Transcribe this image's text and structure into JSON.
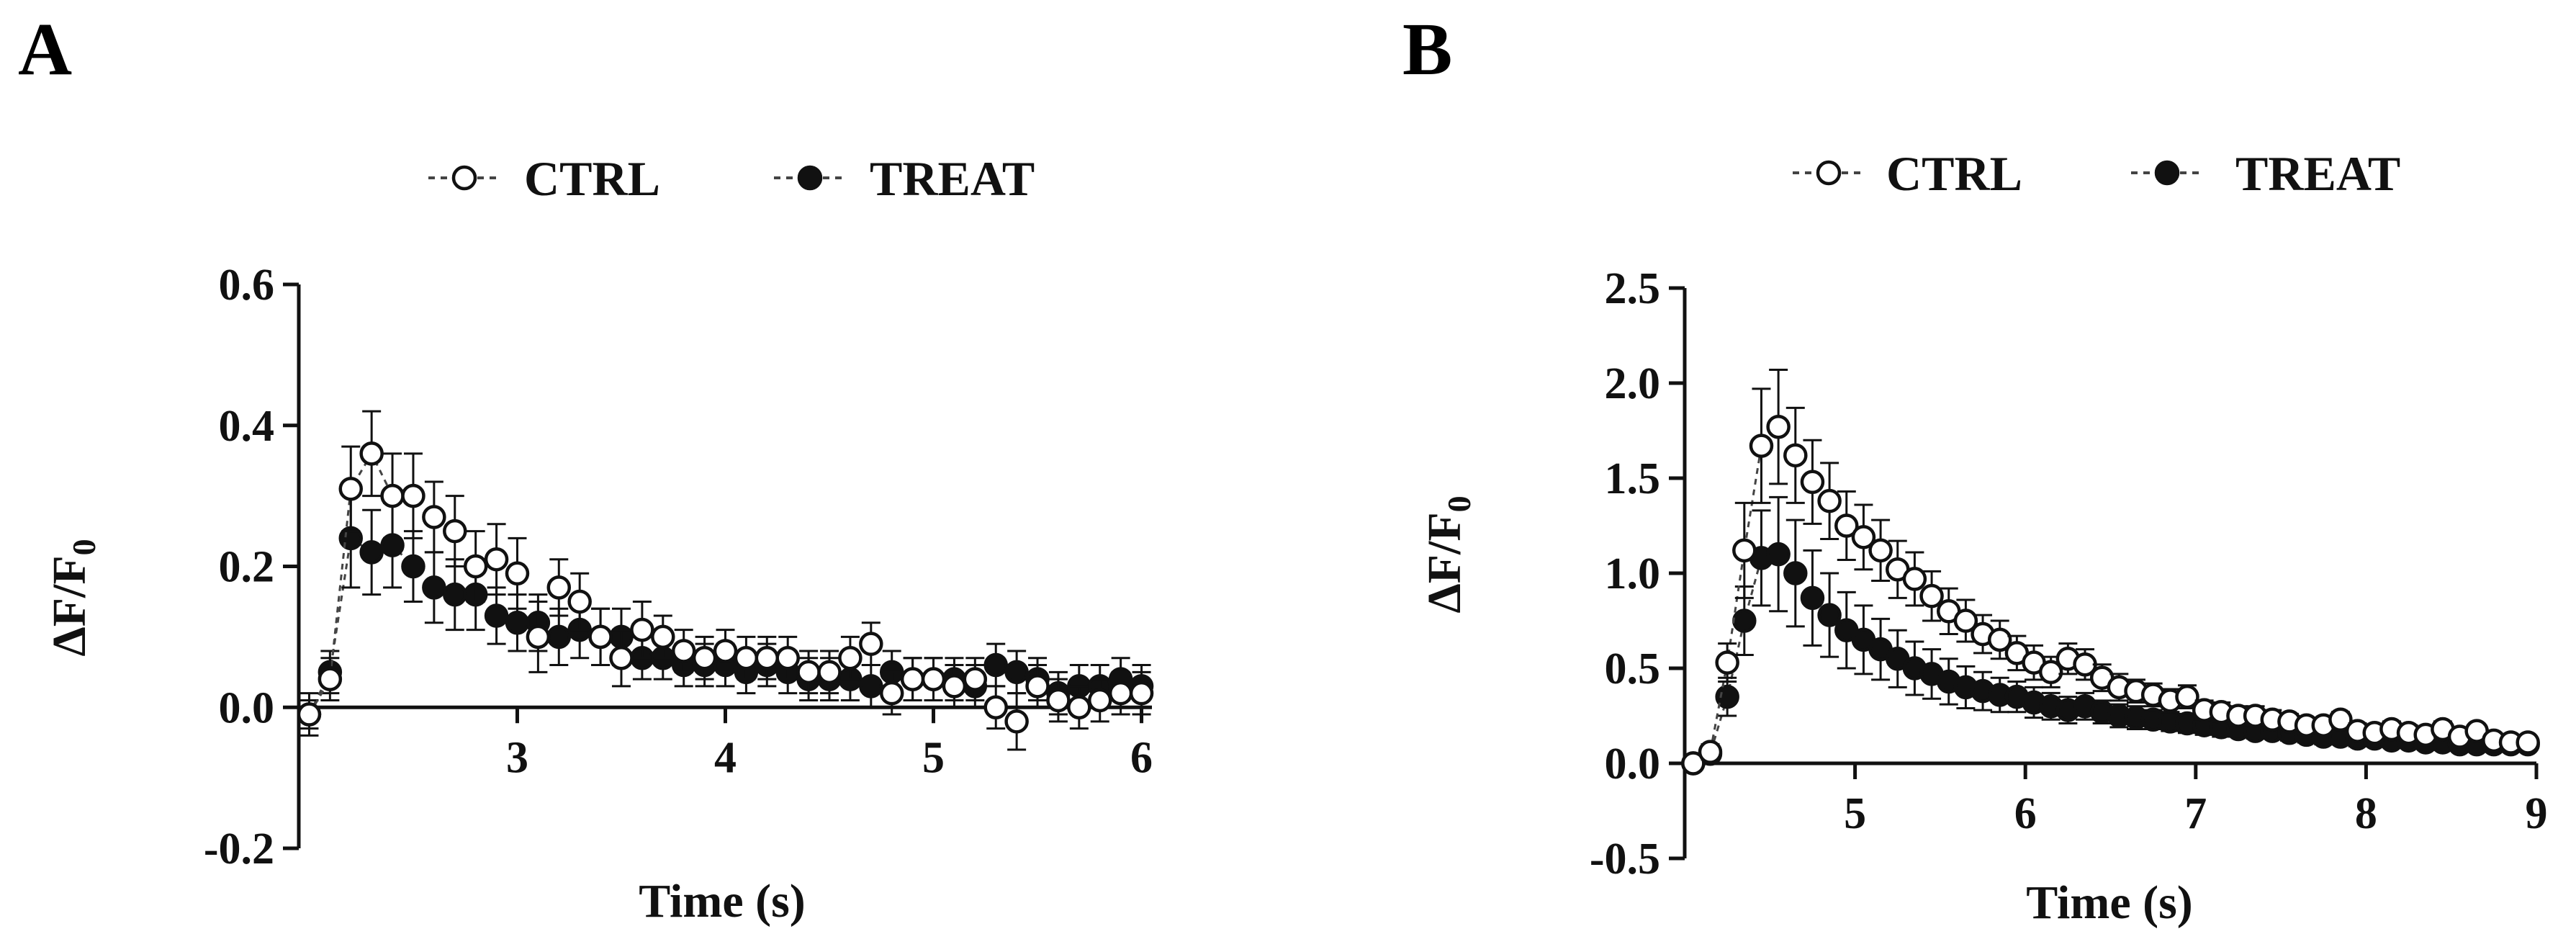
{
  "panels": [
    {
      "letter": "A",
      "legend": {
        "ctrl": "CTRL",
        "treat": "TREAT"
      }
    },
    {
      "letter": "B",
      "legend": {
        "ctrl": "CTRL",
        "treat": "TREAT"
      }
    }
  ],
  "chart_data": [
    {
      "type": "scatter",
      "panel": "A",
      "xlabel": "Time (s)",
      "ylabel": "ΔF/F0",
      "xlim": [
        1.95,
        6.05
      ],
      "ylim": [
        -0.2,
        0.6
      ],
      "xticks": [
        3,
        4,
        5,
        6
      ],
      "yticks": [
        -0.2,
        0.0,
        0.2,
        0.4,
        0.6
      ],
      "ytick_labels": [
        "-0.2",
        "0.0",
        "0.2",
        "0.4",
        "0.6"
      ],
      "legend_position": "top-center",
      "grid": false,
      "series": [
        {
          "name": "CTRL",
          "marker": "open-circle",
          "x": [
            2.0,
            2.1,
            2.2,
            2.3,
            2.4,
            2.5,
            2.6,
            2.7,
            2.8,
            2.9,
            3.0,
            3.1,
            3.2,
            3.3,
            3.4,
            3.5,
            3.6,
            3.7,
            3.8,
            3.9,
            4.0,
            4.1,
            4.2,
            4.3,
            4.4,
            4.5,
            4.6,
            4.7,
            4.8,
            4.9,
            5.0,
            5.1,
            5.2,
            5.3,
            5.4,
            5.5,
            5.6,
            5.7,
            5.8,
            5.9,
            6.0
          ],
          "y": [
            -0.01,
            0.04,
            0.31,
            0.36,
            0.3,
            0.3,
            0.27,
            0.25,
            0.2,
            0.21,
            0.19,
            0.1,
            0.17,
            0.15,
            0.1,
            0.07,
            0.11,
            0.1,
            0.08,
            0.07,
            0.08,
            0.07,
            0.07,
            0.07,
            0.05,
            0.05,
            0.07,
            0.09,
            0.02,
            0.04,
            0.04,
            0.03,
            0.04,
            0.0,
            -0.02,
            0.03,
            0.01,
            0.0,
            0.01,
            0.02,
            0.02
          ],
          "err": [
            0.03,
            0.03,
            0.06,
            0.06,
            0.06,
            0.06,
            0.05,
            0.05,
            0.05,
            0.05,
            0.05,
            0.05,
            0.04,
            0.04,
            0.04,
            0.04,
            0.04,
            0.03,
            0.03,
            0.03,
            0.03,
            0.03,
            0.03,
            0.03,
            0.03,
            0.03,
            0.03,
            0.03,
            0.03,
            0.03,
            0.03,
            0.03,
            0.03,
            0.03,
            0.04,
            0.03,
            0.03,
            0.03,
            0.03,
            0.03,
            0.03
          ]
        },
        {
          "name": "TREAT",
          "marker": "filled-circle",
          "x": [
            2.0,
            2.1,
            2.2,
            2.3,
            2.4,
            2.5,
            2.6,
            2.7,
            2.8,
            2.9,
            3.0,
            3.1,
            3.2,
            3.3,
            3.4,
            3.5,
            3.6,
            3.7,
            3.8,
            3.9,
            4.0,
            4.1,
            4.2,
            4.3,
            4.4,
            4.5,
            4.6,
            4.7,
            4.8,
            4.9,
            5.0,
            5.1,
            5.2,
            5.3,
            5.4,
            5.5,
            5.6,
            5.7,
            5.8,
            5.9,
            6.0
          ],
          "y": [
            -0.01,
            0.05,
            0.24,
            0.22,
            0.23,
            0.2,
            0.17,
            0.16,
            0.16,
            0.13,
            0.12,
            0.12,
            0.1,
            0.11,
            0.1,
            0.1,
            0.07,
            0.07,
            0.06,
            0.06,
            0.06,
            0.05,
            0.06,
            0.05,
            0.04,
            0.04,
            0.04,
            0.03,
            0.05,
            0.04,
            0.04,
            0.04,
            0.03,
            0.06,
            0.05,
            0.04,
            0.02,
            0.03,
            0.03,
            0.04,
            0.03
          ],
          "err": [
            0.02,
            0.03,
            0.07,
            0.06,
            0.06,
            0.05,
            0.05,
            0.05,
            0.05,
            0.04,
            0.04,
            0.04,
            0.04,
            0.04,
            0.04,
            0.04,
            0.03,
            0.03,
            0.03,
            0.03,
            0.03,
            0.03,
            0.03,
            0.03,
            0.03,
            0.03,
            0.03,
            0.03,
            0.03,
            0.03,
            0.03,
            0.03,
            0.03,
            0.03,
            0.03,
            0.03,
            0.03,
            0.03,
            0.03,
            0.03,
            0.03
          ]
        }
      ]
    },
    {
      "type": "scatter",
      "panel": "B",
      "xlabel": "Time (s)",
      "ylabel": "ΔF/F0",
      "xlim": [
        4.0,
        9.0
      ],
      "ylim": [
        -0.5,
        2.5
      ],
      "xticks": [
        5,
        6,
        7,
        8,
        9
      ],
      "yticks": [
        -0.5,
        0.0,
        0.5,
        1.0,
        1.5,
        2.0,
        2.5
      ],
      "ytick_labels": [
        "-0.5",
        "0.0",
        "0.5",
        "1.0",
        "1.5",
        "2.0",
        "2.5"
      ],
      "legend_position": "top-center",
      "grid": false,
      "series": [
        {
          "name": "CTRL",
          "marker": "open-circle",
          "x": [
            4.05,
            4.15,
            4.25,
            4.35,
            4.45,
            4.55,
            4.65,
            4.75,
            4.85,
            4.95,
            5.05,
            5.15,
            5.25,
            5.35,
            5.45,
            5.55,
            5.65,
            5.75,
            5.85,
            5.95,
            6.05,
            6.15,
            6.25,
            6.35,
            6.45,
            6.55,
            6.65,
            6.75,
            6.85,
            6.95,
            7.05,
            7.15,
            7.25,
            7.35,
            7.45,
            7.55,
            7.65,
            7.75,
            7.85,
            7.95,
            8.05,
            8.15,
            8.25,
            8.35,
            8.45,
            8.55,
            8.65,
            8.75,
            8.85,
            8.95
          ],
          "y": [
            0.0,
            0.06,
            0.53,
            1.12,
            1.67,
            1.77,
            1.62,
            1.48,
            1.38,
            1.25,
            1.19,
            1.12,
            1.02,
            0.97,
            0.88,
            0.8,
            0.75,
            0.68,
            0.65,
            0.58,
            0.53,
            0.48,
            0.55,
            0.52,
            0.45,
            0.4,
            0.38,
            0.36,
            0.33,
            0.35,
            0.28,
            0.27,
            0.25,
            0.25,
            0.23,
            0.22,
            0.2,
            0.2,
            0.23,
            0.17,
            0.16,
            0.18,
            0.16,
            0.15,
            0.18,
            0.14,
            0.17,
            0.12,
            0.11,
            0.11
          ],
          "err": [
            0.02,
            0.04,
            0.1,
            0.25,
            0.3,
            0.3,
            0.25,
            0.22,
            0.2,
            0.18,
            0.17,
            0.16,
            0.15,
            0.14,
            0.13,
            0.12,
            0.11,
            0.1,
            0.1,
            0.09,
            0.09,
            0.08,
            0.08,
            0.08,
            0.07,
            0.07,
            0.06,
            0.06,
            0.06,
            0.06,
            0.05,
            0.05,
            0.05,
            0.05,
            0.05,
            0.04,
            0.04,
            0.04,
            0.04,
            0.04,
            0.04,
            0.04,
            0.04,
            0.04,
            0.04,
            0.03,
            0.03,
            0.03,
            0.03,
            0.03
          ]
        },
        {
          "name": "TREAT",
          "marker": "filled-circle",
          "x": [
            4.05,
            4.15,
            4.25,
            4.35,
            4.45,
            4.55,
            4.65,
            4.75,
            4.85,
            4.95,
            5.05,
            5.15,
            5.25,
            5.35,
            5.45,
            5.55,
            5.65,
            5.75,
            5.85,
            5.95,
            6.05,
            6.15,
            6.25,
            6.35,
            6.45,
            6.55,
            6.65,
            6.75,
            6.85,
            6.95,
            7.05,
            7.15,
            7.25,
            7.35,
            7.45,
            7.55,
            7.65,
            7.75,
            7.85,
            7.95,
            8.05,
            8.15,
            8.25,
            8.35,
            8.45,
            8.55,
            8.65,
            8.75,
            8.85,
            8.95
          ],
          "y": [
            0.0,
            0.05,
            0.35,
            0.75,
            1.08,
            1.1,
            1.0,
            0.87,
            0.78,
            0.7,
            0.65,
            0.6,
            0.55,
            0.5,
            0.47,
            0.43,
            0.4,
            0.38,
            0.36,
            0.35,
            0.32,
            0.3,
            0.28,
            0.3,
            0.27,
            0.25,
            0.24,
            0.23,
            0.22,
            0.21,
            0.2,
            0.19,
            0.18,
            0.17,
            0.17,
            0.16,
            0.15,
            0.14,
            0.14,
            0.13,
            0.13,
            0.12,
            0.12,
            0.11,
            0.11,
            0.1,
            0.1,
            0.1,
            0.1,
            0.1
          ],
          "err": [
            0.02,
            0.04,
            0.1,
            0.18,
            0.25,
            0.3,
            0.28,
            0.25,
            0.22,
            0.2,
            0.18,
            0.16,
            0.15,
            0.14,
            0.13,
            0.12,
            0.11,
            0.1,
            0.09,
            0.08,
            0.08,
            0.07,
            0.07,
            0.07,
            0.06,
            0.06,
            0.06,
            0.05,
            0.05,
            0.05,
            0.05,
            0.05,
            0.04,
            0.04,
            0.04,
            0.04,
            0.04,
            0.04,
            0.04,
            0.04,
            0.03,
            0.03,
            0.03,
            0.03,
            0.03,
            0.03,
            0.03,
            0.03,
            0.03,
            0.03
          ]
        }
      ]
    }
  ]
}
